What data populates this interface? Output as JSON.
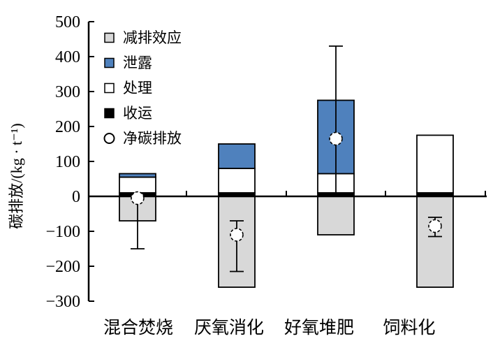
{
  "chart_data": {
    "type": "bar",
    "stacked": true,
    "title": "",
    "xlabel": "",
    "ylabel": "碳排放/(kg · t⁻¹)",
    "ylim": [
      -300,
      500
    ],
    "yticks": [
      500,
      400,
      300,
      200,
      100,
      0,
      -100,
      -200,
      -300
    ],
    "yticklabels": [
      "500",
      "400",
      "300",
      "200",
      "100",
      "0",
      "−100",
      "−200",
      "−300"
    ],
    "grid": false,
    "legend_position": "top-left-inside",
    "categories": [
      "混合焚烧",
      "厌氧消化",
      "好氧堆肥",
      "饲料化"
    ],
    "series": [
      {
        "name": "收运",
        "key": "collection",
        "color": "#000000",
        "ranges": [
          [
            0,
            10
          ],
          [
            0,
            10
          ],
          [
            0,
            10
          ],
          [
            0,
            10
          ]
        ]
      },
      {
        "name": "处理",
        "key": "treatment",
        "color": "#FFFFFF",
        "ranges": [
          [
            10,
            55
          ],
          [
            10,
            80
          ],
          [
            10,
            65
          ],
          [
            10,
            175
          ]
        ]
      },
      {
        "name": "泄露",
        "key": "leakage",
        "color": "#4F81BD",
        "ranges": [
          [
            55,
            65
          ],
          [
            80,
            150
          ],
          [
            65,
            275
          ],
          null
        ]
      },
      {
        "name": "减排效应",
        "key": "reduction-effect",
        "color": "#D8D8D8",
        "ranges": [
          [
            0,
            -70
          ],
          [
            0,
            -260
          ],
          [
            0,
            -110
          ],
          [
            0,
            -260
          ]
        ]
      }
    ],
    "net_series": {
      "name": "净碳排放",
      "marker": "open-circle",
      "values": [
        -5,
        -110,
        165,
        -85
      ]
    },
    "error_bars": [
      {
        "high": -5,
        "low": -150,
        "high_cap": false,
        "low_cap": true
      },
      {
        "high": -70,
        "low": -215,
        "high_cap": true,
        "low_cap": true
      },
      {
        "high": 430,
        "low": 10,
        "high_cap": true,
        "low_cap": false
      },
      {
        "high": -60,
        "low": -115,
        "high_cap": true,
        "low_cap": true
      }
    ],
    "legend": [
      {
        "label": "减排效应",
        "marker": "square",
        "color": "#D8D8D8"
      },
      {
        "label": "泄露",
        "marker": "square",
        "color": "#4F81BD"
      },
      {
        "label": "处理",
        "marker": "square",
        "color": "#FFFFFF"
      },
      {
        "label": "收运",
        "marker": "square",
        "color": "#000000"
      },
      {
        "label": "净碳排放",
        "marker": "open-circle",
        "color": "#FFFFFF"
      }
    ],
    "colors": {
      "axis": "#000000",
      "background": "#FFFFFF",
      "leakage_blue": "#4F81BD",
      "reduction_gray": "#D8D8D8"
    }
  }
}
